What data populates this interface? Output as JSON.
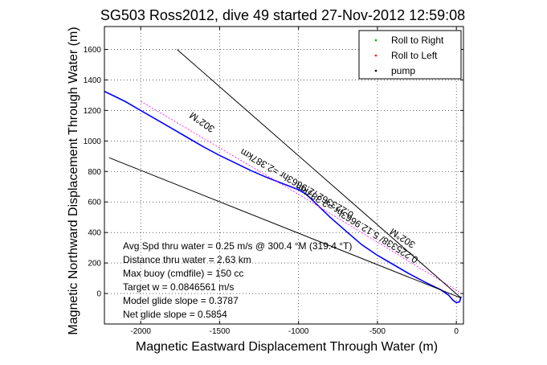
{
  "chart_data": {
    "type": "line",
    "title": "SG503 Ross2012, dive 49 started 27-Nov-2012 12:59:08",
    "xlabel": "Magnetic Eastward Displacement Through Water (m)",
    "ylabel": "Magnetic Northward Displacement Through Water (m)",
    "xlim": [
      -2230,
      45
    ],
    "ylim": [
      -200,
      1750
    ],
    "xticks": [
      -2000,
      -1500,
      -1000,
      -500,
      0
    ],
    "yticks": [
      0,
      200,
      400,
      600,
      800,
      1000,
      1200,
      1400,
      1600
    ],
    "grid": true,
    "legend_position": "top-right",
    "legend": [
      {
        "label": "Roll to Right",
        "color": "#00aa00",
        "marker": "."
      },
      {
        "label": "Roll to Left",
        "color": "#ff0000",
        "marker": "."
      },
      {
        "label": "pump",
        "color": "#000000",
        "marker": "."
      }
    ],
    "series": [
      {
        "style": "track",
        "color": "#0000ff",
        "x": [
          -2230,
          -2100,
          -2000,
          -1900,
          -1800,
          -1700,
          -1600,
          -1500,
          -1400,
          -1300,
          -1200,
          -1100,
          -1000,
          -950,
          -900,
          -800,
          -700,
          -600,
          -500,
          -400,
          -300,
          -200,
          -100,
          -50,
          -20,
          0,
          20,
          30
        ],
        "y": [
          1325,
          1260,
          1200,
          1140,
          1080,
          1020,
          960,
          905,
          855,
          805,
          760,
          720,
          680,
          650,
          600,
          500,
          410,
          320,
          250,
          190,
          130,
          75,
          25,
          -10,
          -45,
          -60,
          -55,
          -20
        ]
      },
      {
        "style": "course",
        "color": "#ff00ff",
        "x": [
          -2000,
          -1000,
          20
        ],
        "y": [
          1260,
          650,
          10
        ]
      },
      {
        "style": "bound-upper",
        "color": "#000000",
        "x": [
          -1770,
          30
        ],
        "y": [
          1600,
          -30
        ]
      },
      {
        "style": "bound-lower",
        "color": "#000000",
        "x": [
          -2200,
          30
        ],
        "y": [
          890,
          -30
        ]
      }
    ],
    "line_labels": [
      {
        "text": "302°M",
        "x": -1600,
        "y": 1140,
        "angle": 215
      },
      {
        "text": "0.223362 /2.9663hr =2.387km",
        "x": -1000,
        "y": 740,
        "angle": 210
      },
      {
        "text": "0.225338/ 5.12.9663hr =2.387km",
        "x": -620,
        "y": 480,
        "angle": 212
      },
      {
        "text": "302°M",
        "x": -330,
        "y": 380,
        "angle": 213
      }
    ],
    "annotations": [
      "Avg Spd thru water =  0.25 m/s @ 300.4   °M (319.4 °T)",
      "Distance thru water =  2.63 km",
      "Max buoy (cmdfile) = 150 cc",
      "Target w = 0.0846561 m/s",
      "Model glide slope = 0.3787",
      "Net glide slope = 0.5854"
    ]
  }
}
